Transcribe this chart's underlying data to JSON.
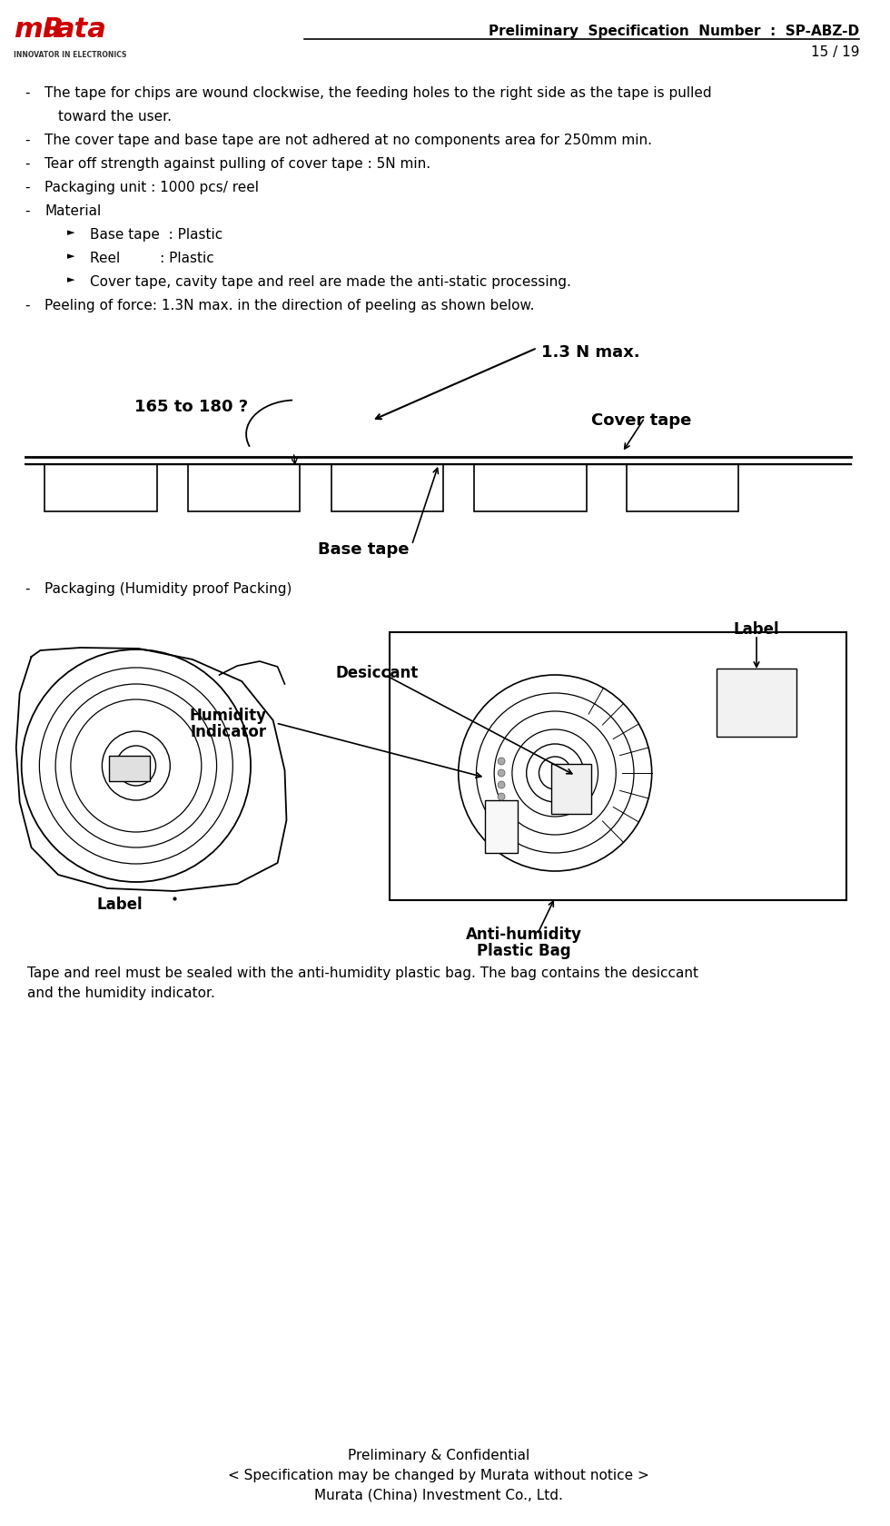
{
  "bg_color": "#ffffff",
  "title_line1": "Preliminary  Specification  Number  :  SP-ABZ-D",
  "title_line2": "15 / 19",
  "footer_line1": "Preliminary & Confidential",
  "footer_line2": "< Specification may be changed by Murata without notice >",
  "footer_line3": "Murata (China) Investment Co., Ltd.",
  "last_bullet": "Peeling of force: 1.3N max. in the direction of peeling as shown below.",
  "packaging_bullet": "Packaging (Humidity proof Packing)",
  "packaging_text_1": "Tape and reel must be sealed with the anti-humidity plastic bag. The bag contains the desiccant",
  "packaging_text_2": "and the humidity indicator.",
  "diagram_labels": {
    "force": "1.3 N max.",
    "angle": "165 to 180 ?",
    "cover_tape": "Cover tape",
    "base_tape": "Base tape"
  },
  "pkg_labels": {
    "label_top": "Label",
    "desiccant": "Desiccant",
    "humidity_indicator_1": "Humidity",
    "humidity_indicator_2": "Indicator",
    "anti_humidity_bag_1": "Anti-humidity",
    "anti_humidity_bag_2": "Plastic Bag",
    "label_bottom": "Label"
  },
  "text_color": "#000000",
  "line_color": "#000000",
  "logo_red": "#cc0000"
}
